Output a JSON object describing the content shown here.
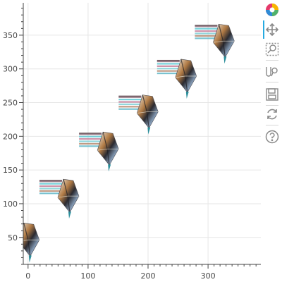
{
  "chart_data": {
    "type": "scatter",
    "marker": "image",
    "xlim": [
      -8,
      388
    ],
    "ylim": [
      10,
      398
    ],
    "xticks": [
      0,
      100,
      200,
      300
    ],
    "yticks": [
      50,
      100,
      150,
      200,
      250,
      300,
      350
    ],
    "grid": true,
    "points": [
      {
        "x": 0,
        "y": 40
      },
      {
        "x": 66,
        "y": 105
      },
      {
        "x": 132,
        "y": 175
      },
      {
        "x": 198,
        "y": 230
      },
      {
        "x": 262,
        "y": 283
      },
      {
        "x": 325,
        "y": 335
      }
    ]
  },
  "toolbar": {
    "logo": "bokeh-logo-icon",
    "tools": [
      "pan-icon",
      "box-zoom-icon",
      "wheel-zoom-icon",
      "save-icon",
      "reset-icon",
      "help-icon"
    ],
    "active_color": "#26aae1"
  }
}
